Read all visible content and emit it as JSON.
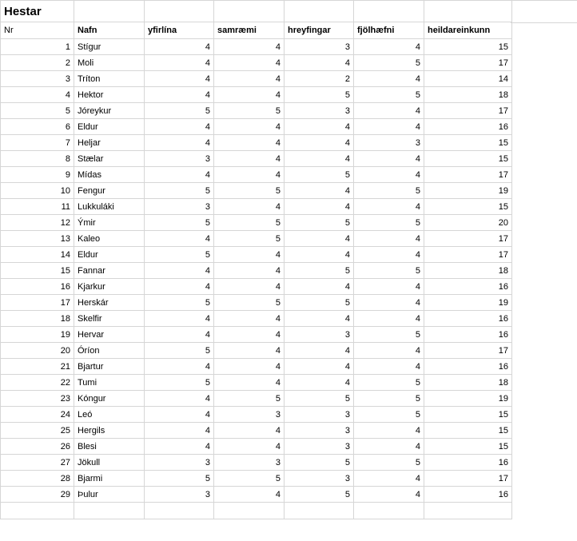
{
  "sheet": {
    "title": "Hestar",
    "columns": [
      "Nr",
      "Nafn",
      "yfirlína",
      "samræmi",
      "hreyfingar",
      "fjölhæfni",
      "heildareinkunn"
    ],
    "rows": [
      [
        1,
        "Stígur",
        4,
        4,
        3,
        4,
        15
      ],
      [
        2,
        "Moli",
        4,
        4,
        4,
        5,
        17
      ],
      [
        3,
        "Tríton",
        4,
        4,
        2,
        4,
        14
      ],
      [
        4,
        "Hektor",
        4,
        4,
        5,
        5,
        18
      ],
      [
        5,
        "Jóreykur",
        5,
        5,
        3,
        4,
        17
      ],
      [
        6,
        "Eldur",
        4,
        4,
        4,
        4,
        16
      ],
      [
        7,
        "Heljar",
        4,
        4,
        4,
        3,
        15
      ],
      [
        8,
        "Stælar",
        3,
        4,
        4,
        4,
        15
      ],
      [
        9,
        "Mídas",
        4,
        4,
        5,
        4,
        17
      ],
      [
        10,
        "Fengur",
        5,
        5,
        4,
        5,
        19
      ],
      [
        11,
        "Lukkuláki",
        3,
        4,
        4,
        4,
        15
      ],
      [
        12,
        "Ýmir",
        5,
        5,
        5,
        5,
        20
      ],
      [
        13,
        "Kaleo",
        4,
        5,
        4,
        4,
        17
      ],
      [
        14,
        "Eldur",
        5,
        4,
        4,
        4,
        17
      ],
      [
        15,
        "Fannar",
        4,
        4,
        5,
        5,
        18
      ],
      [
        16,
        "Kjarkur",
        4,
        4,
        4,
        4,
        16
      ],
      [
        17,
        "Herskár",
        5,
        5,
        5,
        4,
        19
      ],
      [
        18,
        "Skelfir",
        4,
        4,
        4,
        4,
        16
      ],
      [
        19,
        "Hervar",
        4,
        4,
        3,
        5,
        16
      ],
      [
        20,
        "Óríon",
        5,
        4,
        4,
        4,
        17
      ],
      [
        21,
        "Bjartur",
        4,
        4,
        4,
        4,
        16
      ],
      [
        22,
        "Tumi",
        5,
        4,
        4,
        5,
        18
      ],
      [
        23,
        "Kóngur",
        4,
        5,
        5,
        5,
        19
      ],
      [
        24,
        "Leó",
        4,
        3,
        3,
        5,
        15
      ],
      [
        25,
        "Hergils",
        4,
        4,
        3,
        4,
        15
      ],
      [
        26,
        "Blesi",
        4,
        4,
        3,
        4,
        15
      ],
      [
        27,
        "Jökull",
        3,
        3,
        5,
        5,
        16
      ],
      [
        28,
        "Bjarmi",
        5,
        5,
        3,
        4,
        17
      ],
      [
        29,
        "Þulur",
        3,
        4,
        5,
        4,
        16
      ]
    ],
    "colors": {
      "gridline": "#d6d6d6",
      "text": "#000000",
      "background": "#ffffff"
    }
  }
}
